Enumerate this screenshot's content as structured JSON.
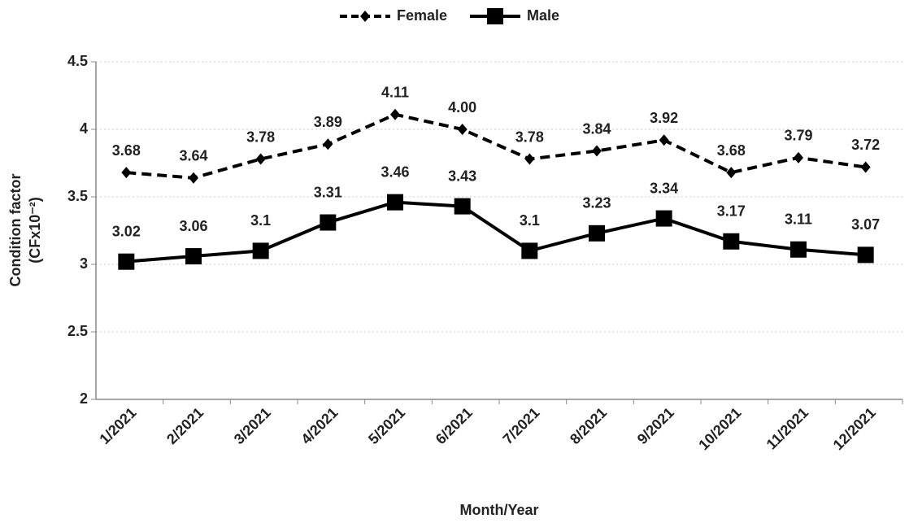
{
  "chart_data": {
    "type": "line",
    "xlabel": "Month/Year",
    "ylabel": [
      "Condition factor",
      "(CFx10⁻²)"
    ],
    "categories": [
      "1/2021",
      "2/2021",
      "3/2021",
      "4/2021",
      "5/2021",
      "6/2021",
      "7/2021",
      "8/2021",
      "9/2021",
      "10/2021",
      "11/2021",
      "12/2021"
    ],
    "series": [
      {
        "name": "Female",
        "color": "#000000",
        "dashed": true,
        "marker": "diamond",
        "values": [
          3.68,
          3.64,
          3.78,
          3.89,
          4.11,
          4,
          3.78,
          3.84,
          3.92,
          3.68,
          3.79,
          3.72
        ],
        "value_labels": [
          "3.68",
          "3.64",
          "3.78",
          "3.89",
          "4.11",
          "4.00",
          "3.78",
          "3.84",
          "3.92",
          "3.68",
          "3.79",
          "3.72"
        ]
      },
      {
        "name": "Male",
        "color": "#000000",
        "dashed": false,
        "marker": "square",
        "values": [
          3.02,
          3.06,
          3.1,
          3.31,
          3.46,
          3.43,
          3.1,
          3.23,
          3.34,
          3.17,
          3.11,
          3.07
        ]
      }
    ],
    "ylim": [
      2,
      4.5
    ],
    "yticks": [
      2,
      2.5,
      3,
      3.5,
      4,
      4.5
    ],
    "grid": true,
    "legend": "top"
  }
}
